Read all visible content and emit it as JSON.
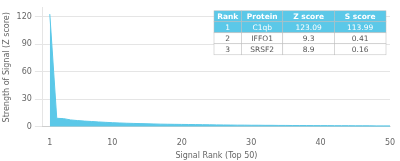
{
  "chart_data": {
    "type": "area",
    "xlabel": "Signal Rank (Top 50)",
    "ylabel": "Strength of Signal (Z score)",
    "x": [
      1,
      2,
      3,
      4,
      5,
      6,
      7,
      8,
      9,
      10,
      11,
      12,
      13,
      14,
      15,
      16,
      17,
      18,
      19,
      20,
      21,
      22,
      23,
      24,
      25,
      26,
      27,
      28,
      29,
      30,
      31,
      32,
      33,
      34,
      35,
      36,
      37,
      38,
      39,
      40,
      41,
      42,
      43,
      44,
      45,
      46,
      47,
      48,
      49,
      50
    ],
    "values": [
      123.09,
      9.3,
      8.9,
      7.5,
      6.8,
      6.2,
      5.8,
      5.3,
      4.9,
      4.5,
      4.2,
      3.9,
      3.7,
      3.5,
      3.3,
      3.1,
      2.9,
      2.8,
      2.7,
      2.6,
      2.5,
      2.4,
      2.3,
      2.2,
      2.1,
      2.0,
      1.9,
      1.8,
      1.8,
      1.7,
      1.7,
      1.6,
      1.6,
      1.5,
      1.5,
      1.4,
      1.4,
      1.4,
      1.3,
      1.3,
      1.3,
      1.2,
      1.2,
      1.2,
      1.1,
      1.1,
      1.1,
      1.0,
      1.0,
      1.0
    ],
    "color": "#5bc8e8",
    "xlim": [
      0,
      50
    ],
    "xticks": [
      1,
      10,
      20,
      30,
      40,
      50
    ],
    "ylim": [
      0,
      130
    ],
    "yticks": [
      0,
      30,
      60,
      90,
      120
    ],
    "grid": "y",
    "table": [
      [
        "Rank",
        "Protein",
        "Z score",
        "S score"
      ],
      [
        "1",
        "C1qb",
        "123.09",
        "113.99"
      ],
      [
        "2",
        "IFFO1",
        "9.3",
        "0.41"
      ],
      [
        "3",
        "SRSF2",
        "8.9",
        "0.16"
      ]
    ]
  }
}
